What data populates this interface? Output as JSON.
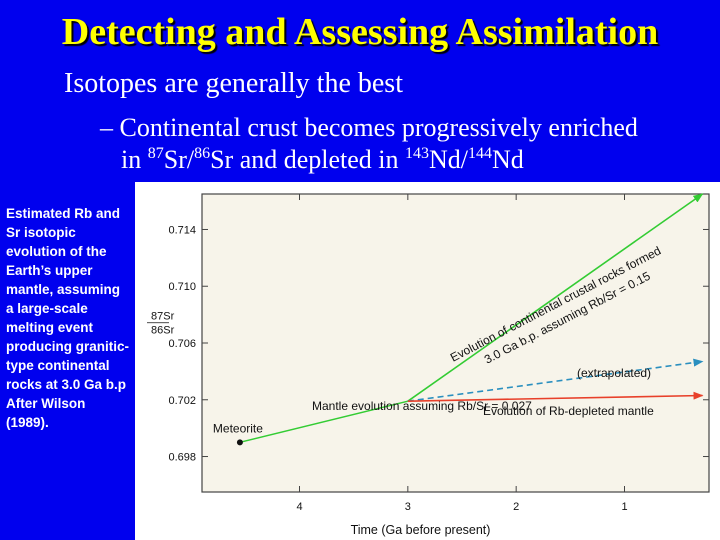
{
  "slide": {
    "title": "Detecting and Assessing Assimilation",
    "bullet_1": "Isotopes are generally the best",
    "bullet_2": {
      "dash": "–",
      "line1": "Continental crust becomes progressively enriched",
      "in": "in",
      "sup87": "87",
      "sr_a": "Sr/",
      "sup86": "86",
      "sr_b": "Sr and depleted in",
      "sup143": "143",
      "nd_a": "Nd/",
      "sup144": "144",
      "nd_b": "Nd"
    },
    "caption": "Estimated Rb and Sr isotopic evolution of the Earth’s upper mantle, assuming a large-scale melting event producing granitic-type continental rocks at 3.0 Ga b.p After Wilson (1989)."
  },
  "colors": {
    "background": "#0000ee",
    "title": "#ffff00",
    "chart_bg": "#f7f4ea",
    "crust_line": "#33cc33",
    "extrapolated_line": "#2a8fbf",
    "depleted_line": "#e8402a"
  },
  "chart_data": {
    "type": "line",
    "title": "",
    "xlabel": "Time (Ga before present)",
    "ylabel_top": "87Sr",
    "ylabel_bottom": "86Sr",
    "xlim": [
      4.9,
      0.22
    ],
    "ylim": [
      0.6955,
      0.7165
    ],
    "x_ticks": [
      4,
      3,
      2,
      1
    ],
    "x_tick_labels": [
      "4",
      "3",
      "2",
      "1"
    ],
    "y_ticks": [
      0.698,
      0.702,
      0.706,
      0.71,
      0.714
    ],
    "y_tick_labels": [
      "0.698",
      "0.702",
      "0.706",
      "0.710",
      "0.714"
    ],
    "series": [
      {
        "name": "Mantle evolution assuming Rb/Sr = 0.027",
        "style": "solid",
        "color": "#33cc33",
        "x": [
          4.55,
          3.0
        ],
        "y": [
          0.699,
          0.7019
        ]
      },
      {
        "name": "Evolution of continental crustal rocks formed 3.0 Ga b.p. assuming Rb/Sr = 0.15",
        "style": "solid-arrow",
        "color": "#33cc33",
        "x": [
          3.0,
          0.28
        ],
        "y": [
          0.7019,
          0.7165
        ]
      },
      {
        "name": "(extrapolated)",
        "style": "dashed-arrow",
        "color": "#2a8fbf",
        "x": [
          3.0,
          0.28
        ],
        "y": [
          0.7019,
          0.7047
        ]
      },
      {
        "name": "Evolution of Rb-depleted mantle",
        "style": "solid-arrow",
        "color": "#e8402a",
        "x": [
          3.0,
          0.28
        ],
        "y": [
          0.7019,
          0.7023
        ]
      }
    ],
    "point": {
      "label": "Meteorite",
      "x": 4.55,
      "y": 0.699
    },
    "annotations": [
      "Mantle evolution assuming Rb/Sr = 0.027",
      "Evolution of continental crustal rocks formed",
      "3.0 Ga b.p. assuming Rb/Sr = 0.15",
      "(extrapolated)",
      "Evolution of Rb-depleted mantle"
    ],
    "grid": false
  }
}
